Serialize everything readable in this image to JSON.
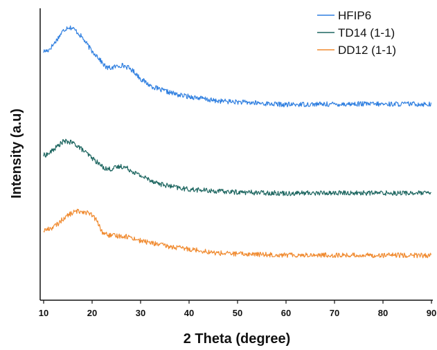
{
  "chart_data": {
    "type": "line",
    "title": "",
    "xlabel": "2 Theta (degree)",
    "ylabel": "Intensity (a.u)",
    "xlim": [
      10,
      90
    ],
    "ylim": [
      0,
      1
    ],
    "x_ticks": [
      "10",
      "20",
      "30",
      "40",
      "50",
      "60",
      "70",
      "80",
      "90"
    ],
    "y_tick_labels_shown": false,
    "grid": false,
    "legend": {
      "position": "top-right"
    },
    "series": [
      {
        "name": "HFIP6",
        "color": "#2f7fe0",
        "x": [
          10,
          11,
          12,
          13,
          14,
          15,
          16,
          17,
          18,
          19,
          20,
          21,
          22,
          23,
          24,
          25,
          26,
          27,
          28,
          29,
          30,
          32,
          34,
          36,
          38,
          40,
          42,
          45,
          50,
          55,
          60,
          65,
          70,
          75,
          80,
          85,
          90
        ],
        "y": [
          0.875,
          0.88,
          0.9,
          0.925,
          0.95,
          0.965,
          0.96,
          0.945,
          0.925,
          0.9,
          0.875,
          0.86,
          0.835,
          0.815,
          0.815,
          0.82,
          0.825,
          0.82,
          0.81,
          0.795,
          0.775,
          0.75,
          0.735,
          0.725,
          0.715,
          0.71,
          0.705,
          0.695,
          0.69,
          0.685,
          0.68,
          0.682,
          0.682,
          0.683,
          0.682,
          0.683,
          0.682
        ]
      },
      {
        "name": "TD14 (1-1)",
        "color": "#1d6660",
        "x": [
          10,
          11,
          12,
          13,
          14,
          15,
          16,
          17,
          18,
          19,
          20,
          21,
          22,
          23,
          24,
          25,
          26,
          27,
          28,
          29,
          30,
          32,
          34,
          36,
          38,
          40,
          42,
          45,
          50,
          55,
          60,
          65,
          70,
          75,
          80,
          85,
          90
        ],
        "y": [
          0.495,
          0.5,
          0.515,
          0.53,
          0.545,
          0.545,
          0.54,
          0.53,
          0.515,
          0.5,
          0.485,
          0.47,
          0.455,
          0.445,
          0.445,
          0.45,
          0.455,
          0.45,
          0.44,
          0.43,
          0.42,
          0.405,
          0.39,
          0.382,
          0.375,
          0.37,
          0.368,
          0.364,
          0.36,
          0.358,
          0.356,
          0.357,
          0.357,
          0.357,
          0.357,
          0.357,
          0.356
        ]
      },
      {
        "name": "DD12 (1-1)",
        "color": "#f08a2f",
        "x": [
          10,
          11,
          12,
          13,
          14,
          15,
          16,
          17,
          18,
          19,
          20,
          21,
          22,
          23,
          24,
          25,
          26,
          27,
          28,
          29,
          30,
          32,
          34,
          36,
          38,
          40,
          42,
          45,
          50,
          55,
          60,
          65,
          70,
          75,
          80,
          85,
          90
        ],
        "y": [
          0.22,
          0.225,
          0.232,
          0.245,
          0.262,
          0.275,
          0.285,
          0.29,
          0.29,
          0.285,
          0.275,
          0.255,
          0.215,
          0.205,
          0.2,
          0.2,
          0.2,
          0.198,
          0.195,
          0.188,
          0.182,
          0.175,
          0.168,
          0.16,
          0.156,
          0.152,
          0.148,
          0.138,
          0.134,
          0.132,
          0.13,
          0.13,
          0.129,
          0.129,
          0.129,
          0.129,
          0.128
        ]
      }
    ]
  }
}
